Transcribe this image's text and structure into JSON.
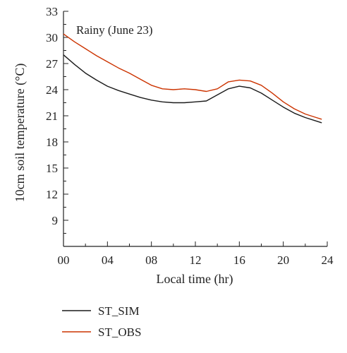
{
  "chart_data": {
    "type": "line",
    "annotation": "Rainy (June 23)",
    "xlabel": "Local time (hr)",
    "ylabel": "10cm soil temperature (°C)",
    "xlim": [
      0,
      24
    ],
    "ylim": [
      6,
      33
    ],
    "xticks": [
      0,
      4,
      8,
      12,
      16,
      20,
      24
    ],
    "xtick_labels": [
      "00",
      "04",
      "08",
      "12",
      "16",
      "20",
      "24"
    ],
    "yticks": [
      9,
      12,
      15,
      18,
      21,
      24,
      27,
      30,
      33
    ],
    "grid": false,
    "legend_position": "bottom",
    "series": [
      {
        "name": "ST_SIM",
        "color": "#1a1a1a",
        "x": [
          0,
          1,
          2,
          3,
          4,
          5,
          6,
          7,
          8,
          9,
          10,
          11,
          12,
          13,
          14,
          15,
          16,
          17,
          18,
          19,
          20,
          21,
          22,
          23,
          23.5
        ],
        "values": [
          28.0,
          26.9,
          25.9,
          25.1,
          24.4,
          23.9,
          23.5,
          23.1,
          22.8,
          22.6,
          22.5,
          22.5,
          22.6,
          22.7,
          23.4,
          24.1,
          24.4,
          24.2,
          23.6,
          22.8,
          22.0,
          21.3,
          20.8,
          20.4,
          20.2
        ]
      },
      {
        "name": "ST_OBS",
        "color": "#cc3300",
        "x": [
          0,
          1,
          2,
          3,
          4,
          5,
          6,
          7,
          8,
          9,
          10,
          11,
          12,
          13,
          14,
          15,
          16,
          17,
          18,
          19,
          20,
          21,
          22,
          23,
          23.5
        ],
        "values": [
          30.4,
          29.5,
          28.7,
          27.9,
          27.2,
          26.5,
          25.9,
          25.2,
          24.5,
          24.1,
          24.0,
          24.1,
          24.0,
          23.8,
          24.1,
          24.9,
          25.1,
          25.0,
          24.5,
          23.6,
          22.6,
          21.8,
          21.2,
          20.8,
          20.6
        ]
      }
    ]
  }
}
